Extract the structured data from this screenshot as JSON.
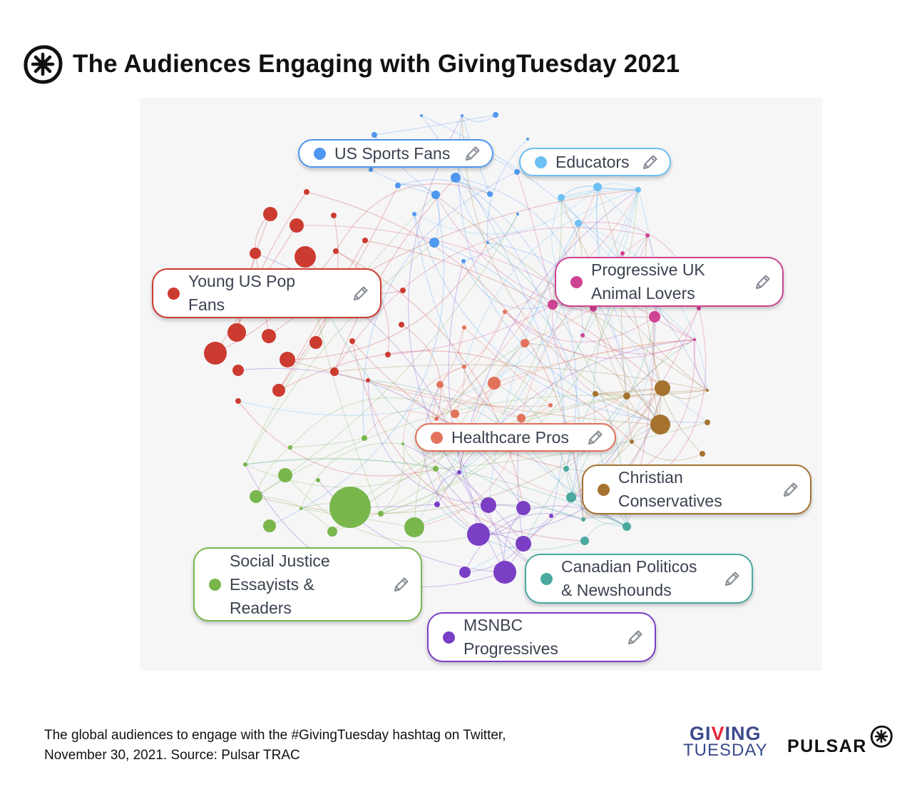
{
  "title": "The Audiences Engaging with GivingTuesday 2021",
  "caption_lines": [
    "The global audiences to engage with the #GivingTuesday hashtag on Twitter,",
    "November 30, 2021. Source: Pulsar TRAC"
  ],
  "brands": {
    "giving_tuesday_line1_a": "GI",
    "giving_tuesday_line1_v": "V",
    "giving_tuesday_line1_b": "ING",
    "giving_tuesday_line2": "TUESDAY",
    "pulsar": "PULSAR"
  },
  "icons": {
    "header_logo": "pulsar-star-icon",
    "label_action": "pencil-icon"
  },
  "audiences": [
    {
      "id": "sports",
      "lines": [
        "US Sports Fans"
      ],
      "color": "#4f97ef"
    },
    {
      "id": "educators",
      "lines": [
        "Educators"
      ],
      "color": "#6cc0f2"
    },
    {
      "id": "pop",
      "lines": [
        "Young US Pop",
        "Fans"
      ],
      "color": "#cc3b30"
    },
    {
      "id": "animal",
      "lines": [
        "Progressive UK",
        "Animal Lovers"
      ],
      "color": "#cf4394"
    },
    {
      "id": "health",
      "lines": [
        "Healthcare Pros"
      ],
      "color": "#e2725c"
    },
    {
      "id": "christian",
      "lines": [
        "Christian",
        "Conservatives"
      ],
      "color": "#a5732f"
    },
    {
      "id": "social",
      "lines": [
        "Social Justice",
        "Essayists &",
        "Readers"
      ],
      "color": "#79b74d"
    },
    {
      "id": "canadian",
      "lines": [
        "Canadian Politicos",
        "& Newshounds"
      ],
      "color": "#4aa89e"
    },
    {
      "id": "msnbc",
      "lines": [
        "MSNBC",
        "Progressives"
      ],
      "color": "#7a3fc4"
    }
  ]
}
